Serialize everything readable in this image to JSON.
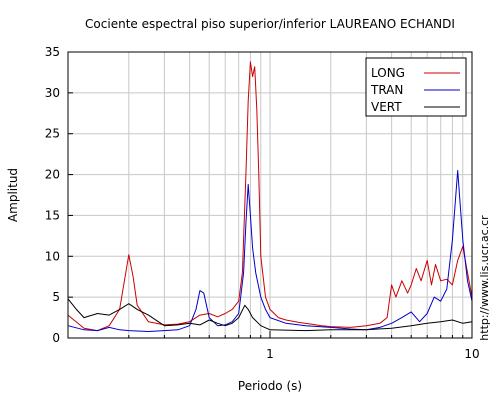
{
  "chart_data": {
    "type": "line",
    "title": "Cociente espectral piso superior/inferior LAUREANO ECHANDI",
    "xlabel": "Periodo (s)",
    "ylabel": "Amplitud",
    "x_scale": "log",
    "xlim": [
      0.1,
      10
    ],
    "ylim": [
      0,
      35
    ],
    "x_ticks": [
      {
        "value": 1,
        "label": "1"
      },
      {
        "value": 10,
        "label": "10"
      }
    ],
    "y_ticks": [
      0,
      5,
      10,
      15,
      20,
      25,
      30,
      35
    ],
    "grid": true,
    "legend_position": "top-right",
    "watermark": "http://www.lis.ucr.ac.cr",
    "series": [
      {
        "name": "LONG",
        "color": "#cc0000",
        "points": [
          [
            0.1,
            2.8
          ],
          [
            0.12,
            1.2
          ],
          [
            0.14,
            0.9
          ],
          [
            0.16,
            1.5
          ],
          [
            0.18,
            3.5
          ],
          [
            0.2,
            10.2
          ],
          [
            0.21,
            7.5
          ],
          [
            0.22,
            4.0
          ],
          [
            0.25,
            2.0
          ],
          [
            0.3,
            1.6
          ],
          [
            0.35,
            1.7
          ],
          [
            0.4,
            2.0
          ],
          [
            0.45,
            2.8
          ],
          [
            0.5,
            3.0
          ],
          [
            0.55,
            2.6
          ],
          [
            0.6,
            3.0
          ],
          [
            0.65,
            3.5
          ],
          [
            0.7,
            4.5
          ],
          [
            0.73,
            8.0
          ],
          [
            0.76,
            20.0
          ],
          [
            0.78,
            29.0
          ],
          [
            0.8,
            33.8
          ],
          [
            0.82,
            32.0
          ],
          [
            0.84,
            33.2
          ],
          [
            0.86,
            28.0
          ],
          [
            0.88,
            20.0
          ],
          [
            0.9,
            10.0
          ],
          [
            0.95,
            5.0
          ],
          [
            1.0,
            3.5
          ],
          [
            1.1,
            2.5
          ],
          [
            1.2,
            2.2
          ],
          [
            1.4,
            1.9
          ],
          [
            1.6,
            1.7
          ],
          [
            1.8,
            1.5
          ],
          [
            2.0,
            1.4
          ],
          [
            2.5,
            1.3
          ],
          [
            3.0,
            1.5
          ],
          [
            3.5,
            1.8
          ],
          [
            3.8,
            2.5
          ],
          [
            4.0,
            6.5
          ],
          [
            4.2,
            5.0
          ],
          [
            4.5,
            7.0
          ],
          [
            4.8,
            5.5
          ],
          [
            5.0,
            6.5
          ],
          [
            5.3,
            8.5
          ],
          [
            5.6,
            7.0
          ],
          [
            6.0,
            9.5
          ],
          [
            6.3,
            6.5
          ],
          [
            6.6,
            9.0
          ],
          [
            7.0,
            7.0
          ],
          [
            7.5,
            7.2
          ],
          [
            8.0,
            6.5
          ],
          [
            8.5,
            9.5
          ],
          [
            9.0,
            11.2
          ],
          [
            9.5,
            8.0
          ],
          [
            10.0,
            5.0
          ]
        ]
      },
      {
        "name": "TRAN",
        "color": "#0000cc",
        "points": [
          [
            0.1,
            1.5
          ],
          [
            0.12,
            1.0
          ],
          [
            0.14,
            0.9
          ],
          [
            0.16,
            1.3
          ],
          [
            0.18,
            1.0
          ],
          [
            0.2,
            0.9
          ],
          [
            0.25,
            0.8
          ],
          [
            0.3,
            0.9
          ],
          [
            0.35,
            1.0
          ],
          [
            0.4,
            1.5
          ],
          [
            0.43,
            3.5
          ],
          [
            0.45,
            5.8
          ],
          [
            0.47,
            5.5
          ],
          [
            0.5,
            2.5
          ],
          [
            0.55,
            1.5
          ],
          [
            0.6,
            1.6
          ],
          [
            0.65,
            2.0
          ],
          [
            0.7,
            3.0
          ],
          [
            0.74,
            8.0
          ],
          [
            0.76,
            14.0
          ],
          [
            0.78,
            18.8
          ],
          [
            0.8,
            15.0
          ],
          [
            0.82,
            11.0
          ],
          [
            0.85,
            8.0
          ],
          [
            0.9,
            5.0
          ],
          [
            0.95,
            3.5
          ],
          [
            1.0,
            2.5
          ],
          [
            1.2,
            1.8
          ],
          [
            1.5,
            1.5
          ],
          [
            2.0,
            1.3
          ],
          [
            2.5,
            1.1
          ],
          [
            3.0,
            1.0
          ],
          [
            3.5,
            1.3
          ],
          [
            4.0,
            1.8
          ],
          [
            4.5,
            2.5
          ],
          [
            5.0,
            3.2
          ],
          [
            5.5,
            2.0
          ],
          [
            6.0,
            3.0
          ],
          [
            6.5,
            5.0
          ],
          [
            7.0,
            4.5
          ],
          [
            7.5,
            6.0
          ],
          [
            8.0,
            12.0
          ],
          [
            8.5,
            20.5
          ],
          [
            9.0,
            12.0
          ],
          [
            9.5,
            7.0
          ],
          [
            10.0,
            4.5
          ]
        ]
      },
      {
        "name": "VERT",
        "color": "#000000",
        "points": [
          [
            0.1,
            4.8
          ],
          [
            0.11,
            3.5
          ],
          [
            0.12,
            2.5
          ],
          [
            0.14,
            3.0
          ],
          [
            0.16,
            2.8
          ],
          [
            0.18,
            3.5
          ],
          [
            0.2,
            4.2
          ],
          [
            0.22,
            3.5
          ],
          [
            0.25,
            2.8
          ],
          [
            0.28,
            2.0
          ],
          [
            0.3,
            1.5
          ],
          [
            0.35,
            1.6
          ],
          [
            0.4,
            1.8
          ],
          [
            0.45,
            1.6
          ],
          [
            0.5,
            2.2
          ],
          [
            0.55,
            1.8
          ],
          [
            0.6,
            1.5
          ],
          [
            0.65,
            1.8
          ],
          [
            0.7,
            2.5
          ],
          [
            0.75,
            4.0
          ],
          [
            0.78,
            3.5
          ],
          [
            0.82,
            2.5
          ],
          [
            0.9,
            1.5
          ],
          [
            1.0,
            1.0
          ],
          [
            1.5,
            0.9
          ],
          [
            2.0,
            1.0
          ],
          [
            3.0,
            1.0
          ],
          [
            4.0,
            1.2
          ],
          [
            5.0,
            1.5
          ],
          [
            6.0,
            1.8
          ],
          [
            7.0,
            2.0
          ],
          [
            8.0,
            2.2
          ],
          [
            9.0,
            1.8
          ],
          [
            10.0,
            2.0
          ]
        ]
      }
    ]
  }
}
